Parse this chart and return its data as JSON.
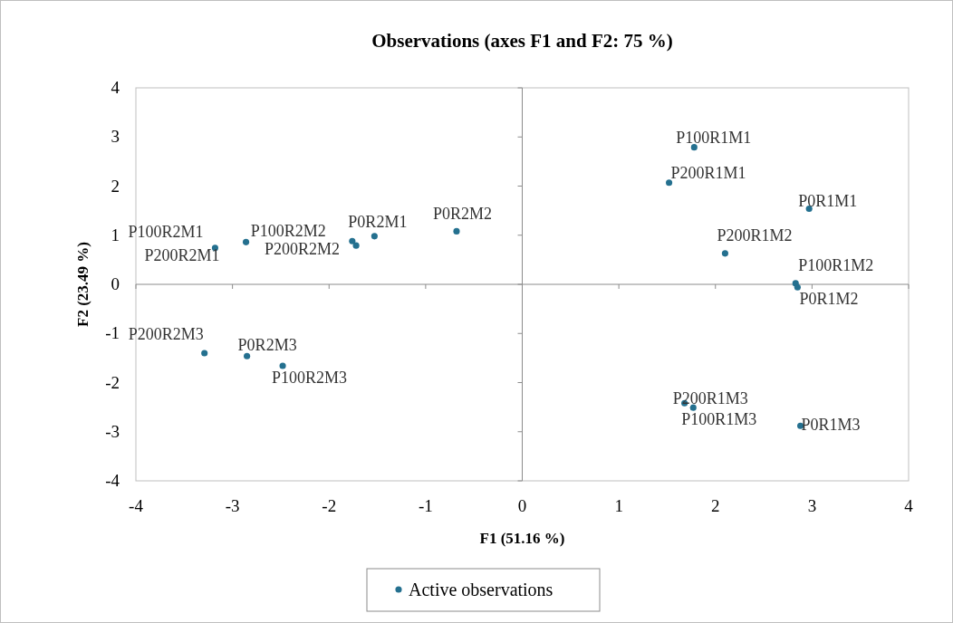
{
  "chart_data": {
    "type": "scatter",
    "title": "Observations (axes F1 and F2: 75 %)",
    "xlabel": "F1 (51.16 %)",
    "ylabel": "F2 (23.49 %)",
    "xlim": [
      -4,
      4
    ],
    "xticks": [
      -4,
      -3,
      -2,
      -1,
      0,
      1,
      2,
      3,
      4
    ],
    "ylim": [
      -4,
      4
    ],
    "yticks": [
      -4,
      -3,
      -2,
      -1,
      0,
      1,
      2,
      3,
      4
    ],
    "legend": "bottom",
    "marker": "circle",
    "series": [
      {
        "name": "Active observations",
        "color": "#24708f",
        "x": [
          1.78,
          1.52,
          2.97,
          2.1,
          2.83,
          2.85,
          1.68,
          1.77,
          2.88,
          -3.18,
          -2.86,
          -1.76,
          -1.72,
          -1.53,
          -0.68,
          -3.29,
          -2.85,
          -2.48
        ],
        "values": [
          2.79,
          2.07,
          1.54,
          0.63,
          0.02,
          -0.06,
          -2.42,
          -2.51,
          -2.88,
          0.74,
          0.86,
          0.88,
          0.79,
          0.98,
          1.08,
          -1.4,
          -1.46,
          -1.66
        ]
      }
    ],
    "annotations": [
      {
        "text": "P100R1M1",
        "x": 1.78,
        "y": 2.79
      },
      {
        "text": "P200R1M1",
        "x": 1.52,
        "y": 2.07
      },
      {
        "text": "P0R1M1",
        "x": 2.97,
        "y": 1.54
      },
      {
        "text": "P200R1M2",
        "x": 2.1,
        "y": 0.63
      },
      {
        "text": "P100R1M2",
        "x": 2.83,
        "y": 0.02
      },
      {
        "text": "P0R1M2",
        "x": 2.85,
        "y": -0.06
      },
      {
        "text": "P200R1M3",
        "x": 1.68,
        "y": -2.42
      },
      {
        "text": "P100R1M3",
        "x": 1.77,
        "y": -2.51
      },
      {
        "text": "P0R1M3",
        "x": 2.88,
        "y": -2.88
      },
      {
        "text": "P100R2M1",
        "x": -3.18,
        "y": 0.74
      },
      {
        "text": "P200R2M1",
        "x": -2.86,
        "y": 0.86
      },
      {
        "text": "P100R2M2",
        "x": -1.76,
        "y": 0.88
      },
      {
        "text": "P200R2M2",
        "x": -1.72,
        "y": 0.79
      },
      {
        "text": "P0R2M1",
        "x": -1.53,
        "y": 0.98
      },
      {
        "text": "P0R2M2",
        "x": -0.68,
        "y": 1.08
      },
      {
        "text": "P200R2M3",
        "x": -3.29,
        "y": -1.4
      },
      {
        "text": "P0R2M3",
        "x": -2.85,
        "y": -1.46
      },
      {
        "text": "P100R2M3",
        "x": -2.48,
        "y": -1.66
      }
    ]
  }
}
